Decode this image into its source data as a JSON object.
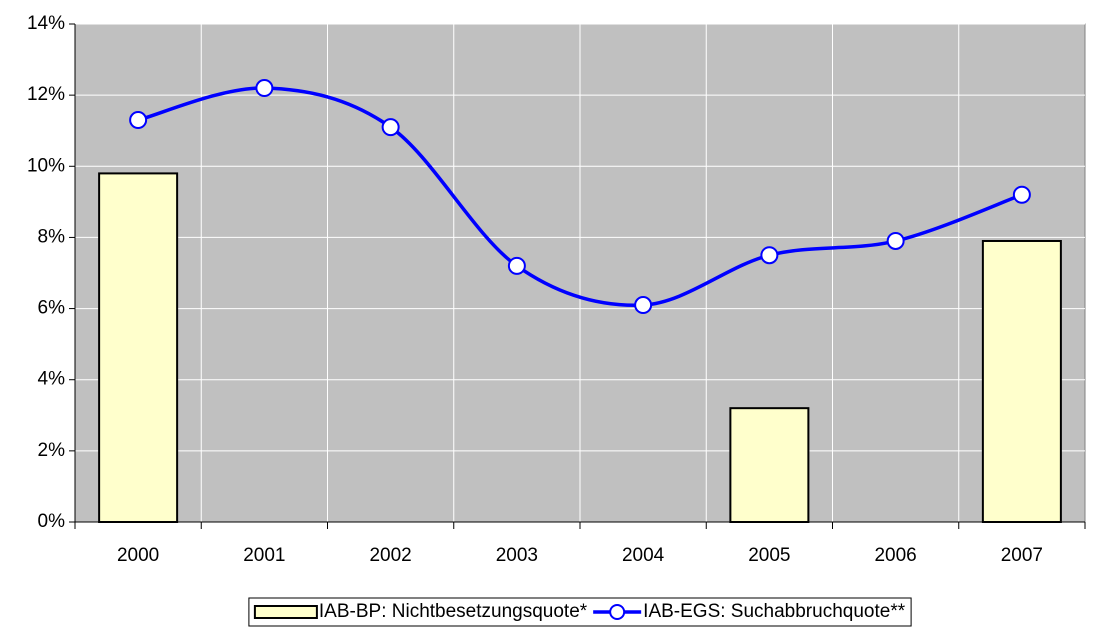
{
  "chart_data": {
    "type": "combo",
    "categories": [
      "2000",
      "2001",
      "2002",
      "2003",
      "2004",
      "2005",
      "2006",
      "2007"
    ],
    "series": [
      {
        "name": "IAB-BP: Nichtbesetzungsquote*",
        "type": "bar",
        "color": "#ffffcc",
        "values": [
          9.8,
          null,
          null,
          null,
          null,
          3.2,
          null,
          7.9
        ]
      },
      {
        "name": "IAB-EGS: Suchabbruchquote**",
        "type": "line",
        "color": "#0000ff",
        "values": [
          11.3,
          12.2,
          11.1,
          7.2,
          6.1,
          7.5,
          7.9,
          9.2
        ]
      }
    ],
    "ylim": [
      0,
      14
    ],
    "yticks": [
      {
        "value": 0,
        "label": "0%"
      },
      {
        "value": 2,
        "label": "2%"
      },
      {
        "value": 4,
        "label": "4%"
      },
      {
        "value": 6,
        "label": "6%"
      },
      {
        "value": 8,
        "label": "8%"
      },
      {
        "value": 10,
        "label": "10%"
      },
      {
        "value": 12,
        "label": "12%"
      },
      {
        "value": 14,
        "label": "14%"
      }
    ],
    "grid": true,
    "legend": "bottom"
  }
}
